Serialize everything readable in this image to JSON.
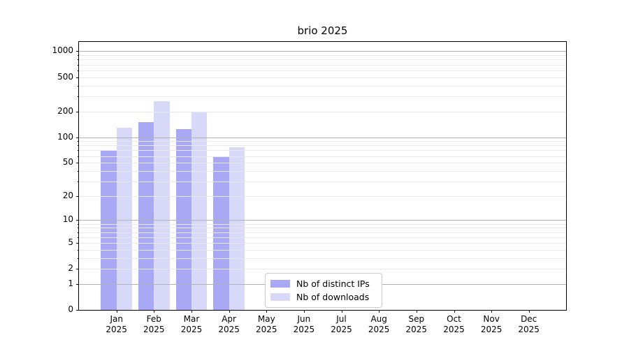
{
  "chart_data": {
    "type": "bar",
    "title": "brio 2025",
    "xlabel": "",
    "ylabel": "",
    "months": [
      "Jan",
      "Feb",
      "Mar",
      "Apr",
      "May",
      "Jun",
      "Jul",
      "Aug",
      "Sep",
      "Oct",
      "Nov",
      "Dec"
    ],
    "year": "2025",
    "categories": [
      "Jan 2025",
      "Feb 2025",
      "Mar 2025",
      "Apr 2025",
      "May 2025",
      "Jun 2025",
      "Jul 2025",
      "Aug 2025",
      "Sep 2025",
      "Oct 2025",
      "Nov 2025",
      "Dec 2025"
    ],
    "series": [
      {
        "name": "Nb of distinct IPs",
        "color": "#a8a8f5",
        "values": [
          70,
          150,
          124,
          60,
          0,
          0,
          0,
          0,
          0,
          0,
          0,
          0
        ]
      },
      {
        "name": "Nb of downloads",
        "color": "#d8d8f8",
        "values": [
          128,
          265,
          195,
          76,
          0,
          0,
          0,
          0,
          0,
          0,
          0,
          0
        ]
      }
    ],
    "yscale": "log10(value+1)",
    "yticks": [
      0,
      1,
      2,
      5,
      10,
      20,
      50,
      100,
      200,
      500,
      1000
    ],
    "ylim": [
      0,
      1285
    ],
    "grid": true,
    "gridline_major_values": [
      1,
      10,
      100,
      1000
    ],
    "gridline_minor_values": [
      2,
      3,
      4,
      5,
      6,
      7,
      8,
      9,
      20,
      30,
      40,
      50,
      60,
      70,
      80,
      90,
      200,
      300,
      400,
      500,
      600,
      700,
      800,
      900
    ],
    "legend_position": "inside-bottom-center",
    "colors": {
      "axis": "#000000",
      "grid_major": "#b2b2b2",
      "grid_minor": "#e9e9e9",
      "background": "#ffffff"
    }
  }
}
